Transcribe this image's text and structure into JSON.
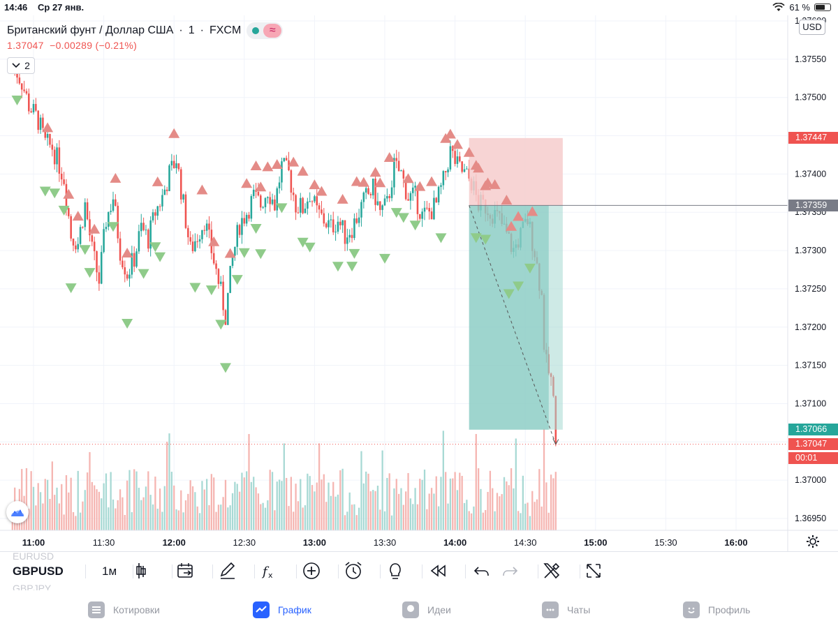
{
  "status_bar": {
    "time": "14:46",
    "date": "Ср 27 янв.",
    "battery": "61 %"
  },
  "legend": {
    "symbol_name": "Британский фунт / Доллар США",
    "interval": "1",
    "exchange": "FXCM",
    "wave_glyph": "≈"
  },
  "quote": {
    "last": "1.37047",
    "change": "−0.00289",
    "change_pct": "(−0.21%)"
  },
  "collapse": {
    "count": "2"
  },
  "currency_button": "USD",
  "price_axis": {
    "ticks": [
      "1.37600",
      "1.37550",
      "1.37500",
      "1.37450",
      "1.37400",
      "1.37350",
      "1.37300",
      "1.37250",
      "1.37200",
      "1.37150",
      "1.37100",
      "1.37050",
      "1.37000",
      "1.36950"
    ],
    "labels": {
      "stop": "1.37447",
      "entry": "1.37359",
      "target": "1.37066",
      "last": "1.37047",
      "countdown": "00:01"
    }
  },
  "time_axis": {
    "ticks": [
      {
        "label": "11:00",
        "bold": true
      },
      {
        "label": "11:30",
        "bold": false
      },
      {
        "label": "12:00",
        "bold": true
      },
      {
        "label": "12:30",
        "bold": false
      },
      {
        "label": "13:00",
        "bold": true
      },
      {
        "label": "13:30",
        "bold": false
      },
      {
        "label": "14:00",
        "bold": true
      },
      {
        "label": "14:30",
        "bold": false
      },
      {
        "label": "15:00",
        "bold": true
      },
      {
        "label": "15:30",
        "bold": false
      },
      {
        "label": "16:00",
        "bold": true
      }
    ]
  },
  "colors": {
    "up": "#26a69a",
    "down": "#ef5350",
    "up_vol": "#a7d9d4",
    "down_vol": "#f5b5b1",
    "triangle_up": "#e48b87",
    "triangle_down": "#8fcb8a",
    "stop_zone": "#f6cdcc",
    "target_zone": "#a6d8d2"
  },
  "toolbar": {
    "symbol": "GBPUSD",
    "symbol_above": "EURUSD",
    "symbol_below": "GBPJPY",
    "timeframe": "1м",
    "icons": [
      "candles-icon",
      "calendar-compare-icon",
      "pen-icon",
      "indicators-fx-icon",
      "add-circle-icon",
      "alarm-clock-icon",
      "lightbulb-icon",
      "replay-rewind-icon",
      "undo-icon",
      "redo-icon",
      "tools-icon",
      "fullscreen-icon"
    ]
  },
  "tabs": [
    {
      "label": "Котировки",
      "icon": "list-icon"
    },
    {
      "label": "График",
      "icon": "chart-icon",
      "active": true
    },
    {
      "label": "Идеи",
      "icon": "idea-icon"
    },
    {
      "label": "Чаты",
      "icon": "chat-icon"
    },
    {
      "label": "Профиль",
      "icon": "profile-icon"
    }
  ],
  "chart_data": {
    "type": "candlestick",
    "symbol": "GBPUSD",
    "interval_minutes": 1,
    "y_range": [
      1.3693,
      1.3761
    ],
    "x_range": [
      "10:51",
      "16:12"
    ],
    "ohlc_anchors": [
      {
        "t": "10:51",
        "c": 1.37545
      },
      {
        "t": "10:55",
        "c": 1.3752
      },
      {
        "t": "10:58",
        "c": 1.3749
      },
      {
        "t": "11:02",
        "c": 1.3747
      },
      {
        "t": "11:05",
        "c": 1.3744
      },
      {
        "t": "11:08",
        "c": 1.37435
      },
      {
        "t": "11:10",
        "c": 1.3742
      },
      {
        "t": "11:13",
        "c": 1.37395
      },
      {
        "t": "11:16",
        "c": 1.3732
      },
      {
        "t": "11:19",
        "c": 1.3731
      },
      {
        "t": "11:22",
        "c": 1.3736
      },
      {
        "t": "11:25",
        "c": 1.373
      },
      {
        "t": "11:28",
        "c": 1.3726
      },
      {
        "t": "11:31",
        "c": 1.3734
      },
      {
        "t": "11:34",
        "c": 1.3737
      },
      {
        "t": "11:37",
        "c": 1.373
      },
      {
        "t": "11:40",
        "c": 1.3727
      },
      {
        "t": "11:43",
        "c": 1.3729
      },
      {
        "t": "11:46",
        "c": 1.3733
      },
      {
        "t": "11:49",
        "c": 1.37315
      },
      {
        "t": "11:52",
        "c": 1.3735
      },
      {
        "t": "11:55",
        "c": 1.3737
      },
      {
        "t": "11:58",
        "c": 1.374
      },
      {
        "t": "12:01",
        "c": 1.3742
      },
      {
        "t": "12:04",
        "c": 1.3736
      },
      {
        "t": "12:07",
        "c": 1.373
      },
      {
        "t": "12:10",
        "c": 1.3732
      },
      {
        "t": "12:13",
        "c": 1.3734
      },
      {
        "t": "12:16",
        "c": 1.373
      },
      {
        "t": "12:19",
        "c": 1.3726
      },
      {
        "t": "12:22",
        "c": 1.37215
      },
      {
        "t": "12:25",
        "c": 1.3729
      },
      {
        "t": "12:28",
        "c": 1.37335
      },
      {
        "t": "12:31",
        "c": 1.3735
      },
      {
        "t": "12:34",
        "c": 1.3737
      },
      {
        "t": "12:37",
        "c": 1.3736
      },
      {
        "t": "12:40",
        "c": 1.3738
      },
      {
        "t": "12:43",
        "c": 1.3736
      },
      {
        "t": "12:46",
        "c": 1.3741
      },
      {
        "t": "12:49",
        "c": 1.374
      },
      {
        "t": "12:52",
        "c": 1.3736
      },
      {
        "t": "12:55",
        "c": 1.37355
      },
      {
        "t": "12:58",
        "c": 1.37375
      },
      {
        "t": "13:01",
        "c": 1.3735
      },
      {
        "t": "13:04",
        "c": 1.3734
      },
      {
        "t": "13:07",
        "c": 1.3733
      },
      {
        "t": "13:10",
        "c": 1.3734
      },
      {
        "t": "13:13",
        "c": 1.3732
      },
      {
        "t": "13:16",
        "c": 1.3733
      },
      {
        "t": "13:19",
        "c": 1.3735
      },
      {
        "t": "13:22",
        "c": 1.3737
      },
      {
        "t": "13:25",
        "c": 1.3738
      },
      {
        "t": "13:28",
        "c": 1.3735
      },
      {
        "t": "13:31",
        "c": 1.3736
      },
      {
        "t": "13:34",
        "c": 1.3741
      },
      {
        "t": "13:37",
        "c": 1.374
      },
      {
        "t": "13:40",
        "c": 1.3737
      },
      {
        "t": "13:43",
        "c": 1.3737
      },
      {
        "t": "13:46",
        "c": 1.37345
      },
      {
        "t": "13:49",
        "c": 1.3735
      },
      {
        "t": "13:52",
        "c": 1.3736
      },
      {
        "t": "13:55",
        "c": 1.3739
      },
      {
        "t": "13:58",
        "c": 1.3743
      },
      {
        "t": "14:01",
        "c": 1.3741
      },
      {
        "t": "14:04",
        "c": 1.374
      },
      {
        "t": "14:07",
        "c": 1.3739
      },
      {
        "t": "14:10",
        "c": 1.3736
      },
      {
        "t": "14:13",
        "c": 1.37358
      },
      {
        "t": "14:16",
        "c": 1.3735
      },
      {
        "t": "14:19",
        "c": 1.3734
      },
      {
        "t": "14:22",
        "c": 1.3732
      },
      {
        "t": "14:25",
        "c": 1.373
      },
      {
        "t": "14:28",
        "c": 1.3732
      },
      {
        "t": "14:31",
        "c": 1.3734
      },
      {
        "t": "14:34",
        "c": 1.373
      },
      {
        "t": "14:36",
        "c": 1.3726
      },
      {
        "t": "14:37",
        "c": 1.3724
      },
      {
        "t": "14:38",
        "c": 1.3718
      },
      {
        "t": "14:39",
        "c": 1.3715
      },
      {
        "t": "14:40",
        "c": 1.3714
      },
      {
        "t": "14:41",
        "c": 1.3713
      },
      {
        "t": "14:42",
        "c": 1.371
      },
      {
        "t": "14:43",
        "c": 1.37047
      }
    ],
    "sell_triangles_t": [
      "11:06",
      "11:15",
      "11:19",
      "11:26",
      "11:35",
      "11:40",
      "11:53",
      "12:00",
      "12:12",
      "12:17",
      "12:24",
      "12:31",
      "12:35",
      "12:37",
      "12:40",
      "12:44",
      "12:51",
      "12:55",
      "13:00",
      "13:03",
      "13:12",
      "13:18",
      "13:21",
      "13:26",
      "13:28",
      "13:32",
      "13:40",
      "13:45",
      "13:50",
      "13:56",
      "13:58",
      "14:01",
      "14:06",
      "14:09",
      "14:10",
      "14:13",
      "14:14",
      "14:17",
      "14:22",
      "14:24",
      "14:27",
      "14:33"
    ],
    "buy_triangles_t": [
      "10:53",
      "11:05",
      "11:09",
      "11:13",
      "11:16",
      "11:22",
      "11:24",
      "11:34",
      "11:40",
      "11:47",
      "11:52",
      "11:54",
      "12:09",
      "12:16",
      "12:20",
      "12:22",
      "12:27",
      "12:30",
      "12:35",
      "12:37",
      "12:46",
      "12:55",
      "12:58",
      "13:10",
      "13:16",
      "13:17",
      "13:30",
      "13:35",
      "13:38",
      "13:43",
      "13:54",
      "14:09",
      "14:13",
      "14:23",
      "14:27",
      "14:32"
    ],
    "position": {
      "type": "short",
      "entry": 1.37359,
      "stop": 1.37447,
      "target": 1.37066,
      "start_t": "14:06",
      "end_t": "14:46"
    },
    "last_price": 1.37047
  }
}
